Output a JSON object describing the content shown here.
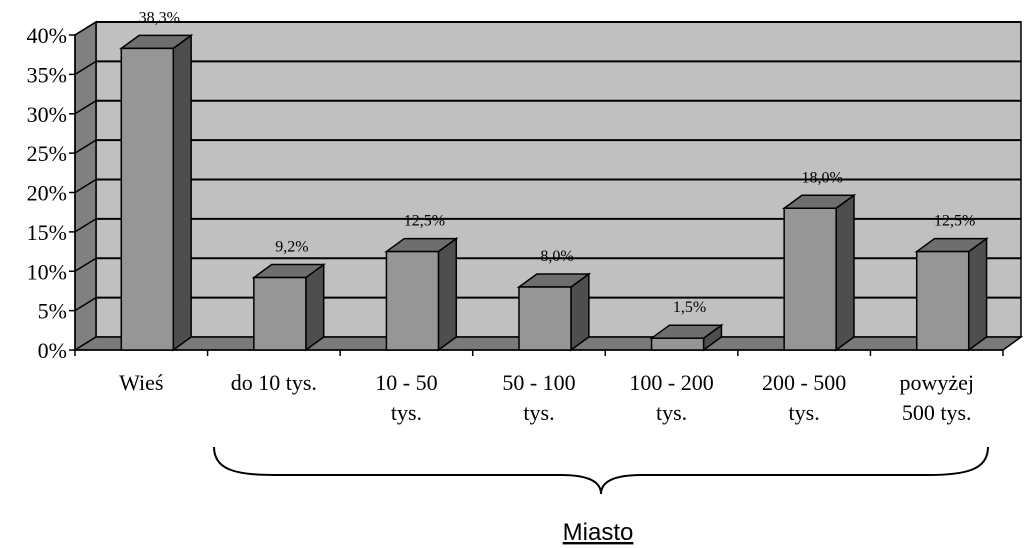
{
  "chart_data": {
    "type": "bar",
    "categories": [
      [
        "Wieś"
      ],
      [
        "do 10 tys."
      ],
      [
        "10 - 50",
        "tys."
      ],
      [
        "50 - 100",
        "tys."
      ],
      [
        "100 - 200",
        "tys."
      ],
      [
        "200 - 500",
        "tys."
      ],
      [
        "powyżej",
        "500 tys."
      ]
    ],
    "values": [
      38.3,
      9.2,
      12.5,
      8.0,
      1.5,
      18.0,
      12.5
    ],
    "data_labels": [
      "38,3%",
      "9,2%",
      "12,5%",
      "8,0%",
      "1,5%",
      "18,0%",
      "12,5%"
    ],
    "ylim": [
      0,
      40
    ],
    "yticks": [
      "0%",
      "5%",
      "10%",
      "15%",
      "20%",
      "25%",
      "30%",
      "35%",
      "40%"
    ],
    "grid": true,
    "style": "3d",
    "group_label": "Miasto",
    "colors": {
      "plot_back": "#c0c0c0",
      "side_wall": "#808080",
      "floor": "#7a7a7a",
      "bar_front": "#969696",
      "bar_top": "#6e6e6e",
      "bar_side": "#4e4e4e"
    }
  }
}
